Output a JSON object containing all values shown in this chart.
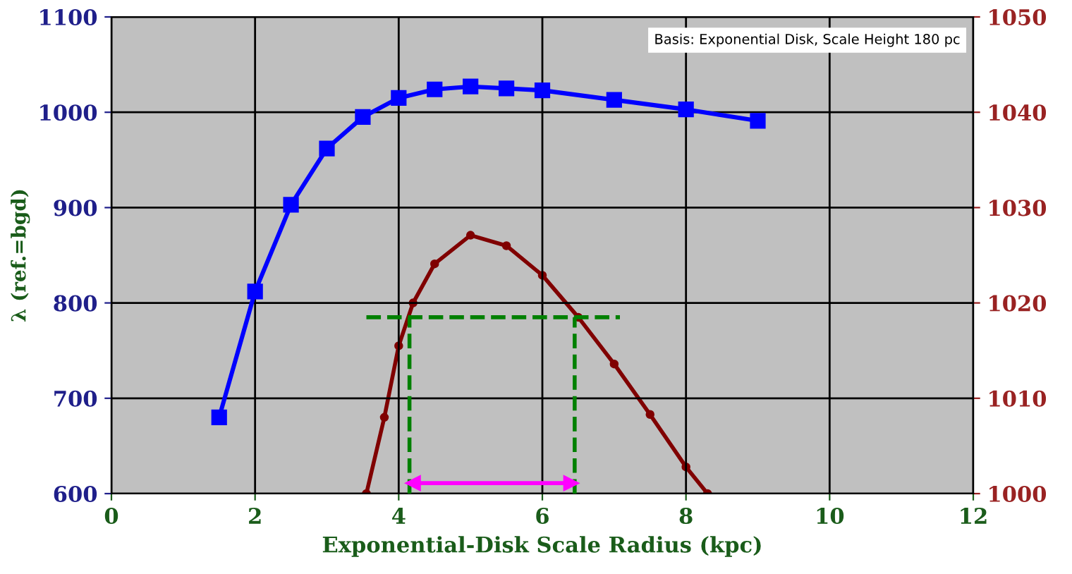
{
  "chart_data": {
    "type": "line",
    "xlabel": "Exponential-Disk Scale Radius (kpc)",
    "ylabel": "λ (ref.=bgd)",
    "xlim": [
      0,
      12
    ],
    "xticks": [
      0,
      2,
      4,
      6,
      8,
      10,
      12
    ],
    "ylim": [
      600,
      1100
    ],
    "yticks": [
      600,
      700,
      800,
      900,
      1000,
      1100
    ],
    "y2lim": [
      1000,
      1050
    ],
    "y2ticks": [
      1000,
      1010,
      1020,
      1030,
      1040,
      1050
    ],
    "grid": true,
    "annotations": [
      "Basis: Exponential Disk, Scale Height 180 pc"
    ],
    "series": [
      {
        "color": "#0000ff",
        "marker": "square",
        "x": [
          1.5,
          2,
          2.5,
          3,
          3.5,
          4,
          4.5,
          5,
          5.5,
          6,
          7,
          8,
          9
        ],
        "values": [
          680,
          812,
          903,
          962,
          995,
          1015,
          1024,
          1027,
          1025,
          1023,
          1013,
          1003,
          991
        ]
      },
      {
        "color": "#800000",
        "marker": "circle",
        "axis": "y2",
        "x": [
          3.55,
          3.8,
          4,
          4.2,
          4.5,
          5,
          5.5,
          6,
          6.5,
          7,
          7.5,
          8,
          8.3
        ],
        "values": [
          1000,
          1008,
          1015.5,
          1020,
          1024.1,
          1027.1,
          1026,
          1022.9,
          1018.5,
          1013.6,
          1008.3,
          1002.8,
          1000
        ]
      },
      {
        "color": "#008000",
        "marker": "none",
        "line_style": "dashed",
        "x": [
          3.55,
          7.08
        ],
        "values": [
          785,
          785
        ]
      },
      {
        "color": "#008000",
        "marker": "none",
        "line_style": "dashed",
        "x": [
          4.15,
          4.15
        ],
        "values": [
          600,
          785
        ]
      },
      {
        "color": "#008000",
        "marker": "none",
        "line_style": "dashed",
        "x": [
          6.45,
          6.45
        ],
        "values": [
          600,
          785
        ]
      },
      {
        "color": "#ff00ff",
        "marker": "triangle",
        "x": [
          4.2,
          6.4
        ],
        "values": [
          611,
          611
        ]
      }
    ]
  }
}
